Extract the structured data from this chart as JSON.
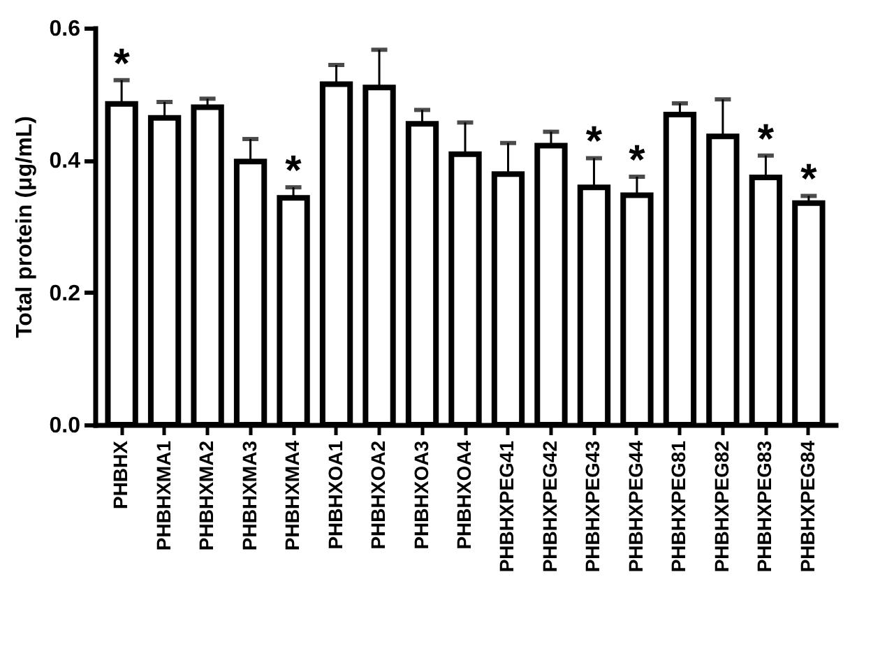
{
  "chart_data": {
    "type": "bar",
    "ylabel": "Total protein (μg/mL)",
    "categories": [
      "PHBHX",
      "PHBHXMA1",
      "PHBHXMA2",
      "PHBHXMA3",
      "PHBHXMA4",
      "PHBHXOA1",
      "PHBHXOA2",
      "PHBHXOA3",
      "PHBHXOA4",
      "PHBHXPEG41",
      "PHBHXPEG42",
      "PHBHXPEG43",
      "PHBHXPEG44",
      "PHBHXPEG81",
      "PHBHXPEG82",
      "PHBHXPEG83",
      "PHBHXPEG84"
    ],
    "values": [
      0.485,
      0.464,
      0.48,
      0.398,
      0.343,
      0.515,
      0.51,
      0.455,
      0.409,
      0.379,
      0.422,
      0.359,
      0.347,
      0.469,
      0.436,
      0.374,
      0.335
    ],
    "errors": [
      [
        0.485,
        0.521
      ],
      [
        0.464,
        0.488
      ],
      [
        0.48,
        0.493
      ],
      [
        0.398,
        0.432
      ],
      [
        0.343,
        0.359
      ],
      [
        0.515,
        0.544
      ],
      [
        0.51,
        0.567
      ],
      [
        0.455,
        0.476
      ],
      [
        0.409,
        0.457
      ],
      [
        0.379,
        0.426
      ],
      [
        0.422,
        0.443
      ],
      [
        0.359,
        0.403
      ],
      [
        0.347,
        0.375
      ],
      [
        0.469,
        0.486
      ],
      [
        0.436,
        0.492
      ],
      [
        0.374,
        0.407
      ],
      [
        0.335,
        0.346
      ]
    ],
    "color": "#ffffff",
    "ylim": [
      0,
      0.6
    ],
    "yticks": [
      {
        "value": 0,
        "label": "0.0"
      },
      {
        "value": 0.2,
        "label": "0.2"
      },
      {
        "value": 0.4,
        "label": "0.4"
      },
      {
        "value": 0.6,
        "label": "0.6"
      }
    ],
    "grid": false,
    "annotations": [
      {
        "text": "*",
        "x": "PHBHX",
        "y": 0.521
      },
      {
        "text": "*",
        "x": "PHBHXMA4",
        "y": 0.359
      },
      {
        "text": "*",
        "x": "PHBHXPEG43",
        "y": 0.403
      },
      {
        "text": "*",
        "x": "PHBHXPEG44",
        "y": 0.375
      },
      {
        "text": "*",
        "x": "PHBHXPEG83",
        "y": 0.407
      },
      {
        "text": "*",
        "x": "PHBHXPEG84",
        "y": 0.346
      }
    ]
  }
}
